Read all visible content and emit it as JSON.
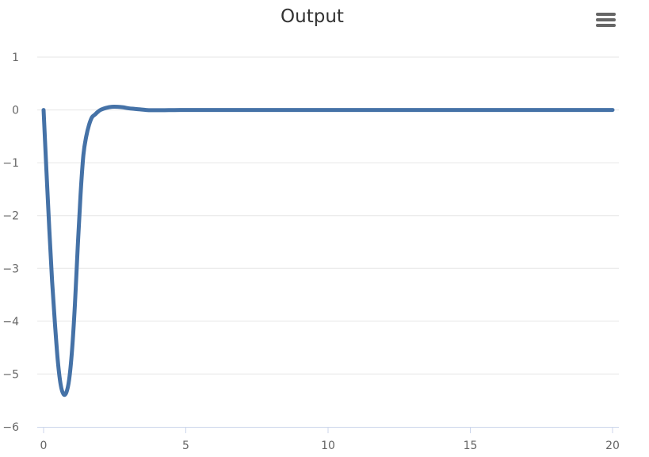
{
  "chart_data": {
    "type": "line",
    "title": "Output",
    "xlabel": "",
    "ylabel": "",
    "xlim": [
      0,
      20
    ],
    "ylim": [
      -6,
      1
    ],
    "x_ticks": [
      0,
      5,
      10,
      15,
      20
    ],
    "y_ticks": [
      1,
      0,
      -1,
      -2,
      -3,
      -4,
      -5,
      -6
    ],
    "y_tick_labels": [
      "1",
      "0",
      "−1",
      "−2",
      "−3",
      "−4",
      "−5",
      "−6"
    ],
    "grid": true,
    "legend": "none",
    "series": [
      {
        "color": "#4572a7",
        "x": [
          0,
          0.1,
          0.2,
          0.3,
          0.4,
          0.5,
          0.6,
          0.7,
          0.8,
          0.9,
          1.0,
          1.1,
          1.2,
          1.3,
          1.4,
          1.5,
          1.6,
          1.7,
          1.8,
          1.9,
          2.0,
          2.2,
          2.4,
          2.6,
          2.8,
          3.0,
          3.2,
          3.4,
          3.6,
          3.8,
          4.0,
          4.4,
          4.8,
          5.2,
          5.6,
          6.0,
          6.5,
          7.0,
          7.5,
          8.0,
          9,
          10,
          12,
          14,
          16,
          18,
          20
        ],
        "y": [
          0,
          -1.15,
          -2.25,
          -3.25,
          -4.05,
          -4.75,
          -5.2,
          -5.38,
          -5.35,
          -5.1,
          -4.55,
          -3.7,
          -2.6,
          -1.6,
          -0.85,
          -0.5,
          -0.28,
          -0.14,
          -0.09,
          -0.04,
          0.0,
          0.04,
          0.06,
          0.06,
          0.05,
          0.03,
          0.02,
          0.01,
          0.0,
          -0.005,
          -0.005,
          -0.003,
          -0.001,
          0.0,
          0.0,
          0.0,
          0.0,
          0.0,
          0.0,
          0.0,
          0.0,
          0.0,
          0.0,
          0.0,
          0.0,
          0.0,
          0.0
        ]
      }
    ]
  },
  "menu": {
    "icon": "hamburger-menu-icon"
  }
}
